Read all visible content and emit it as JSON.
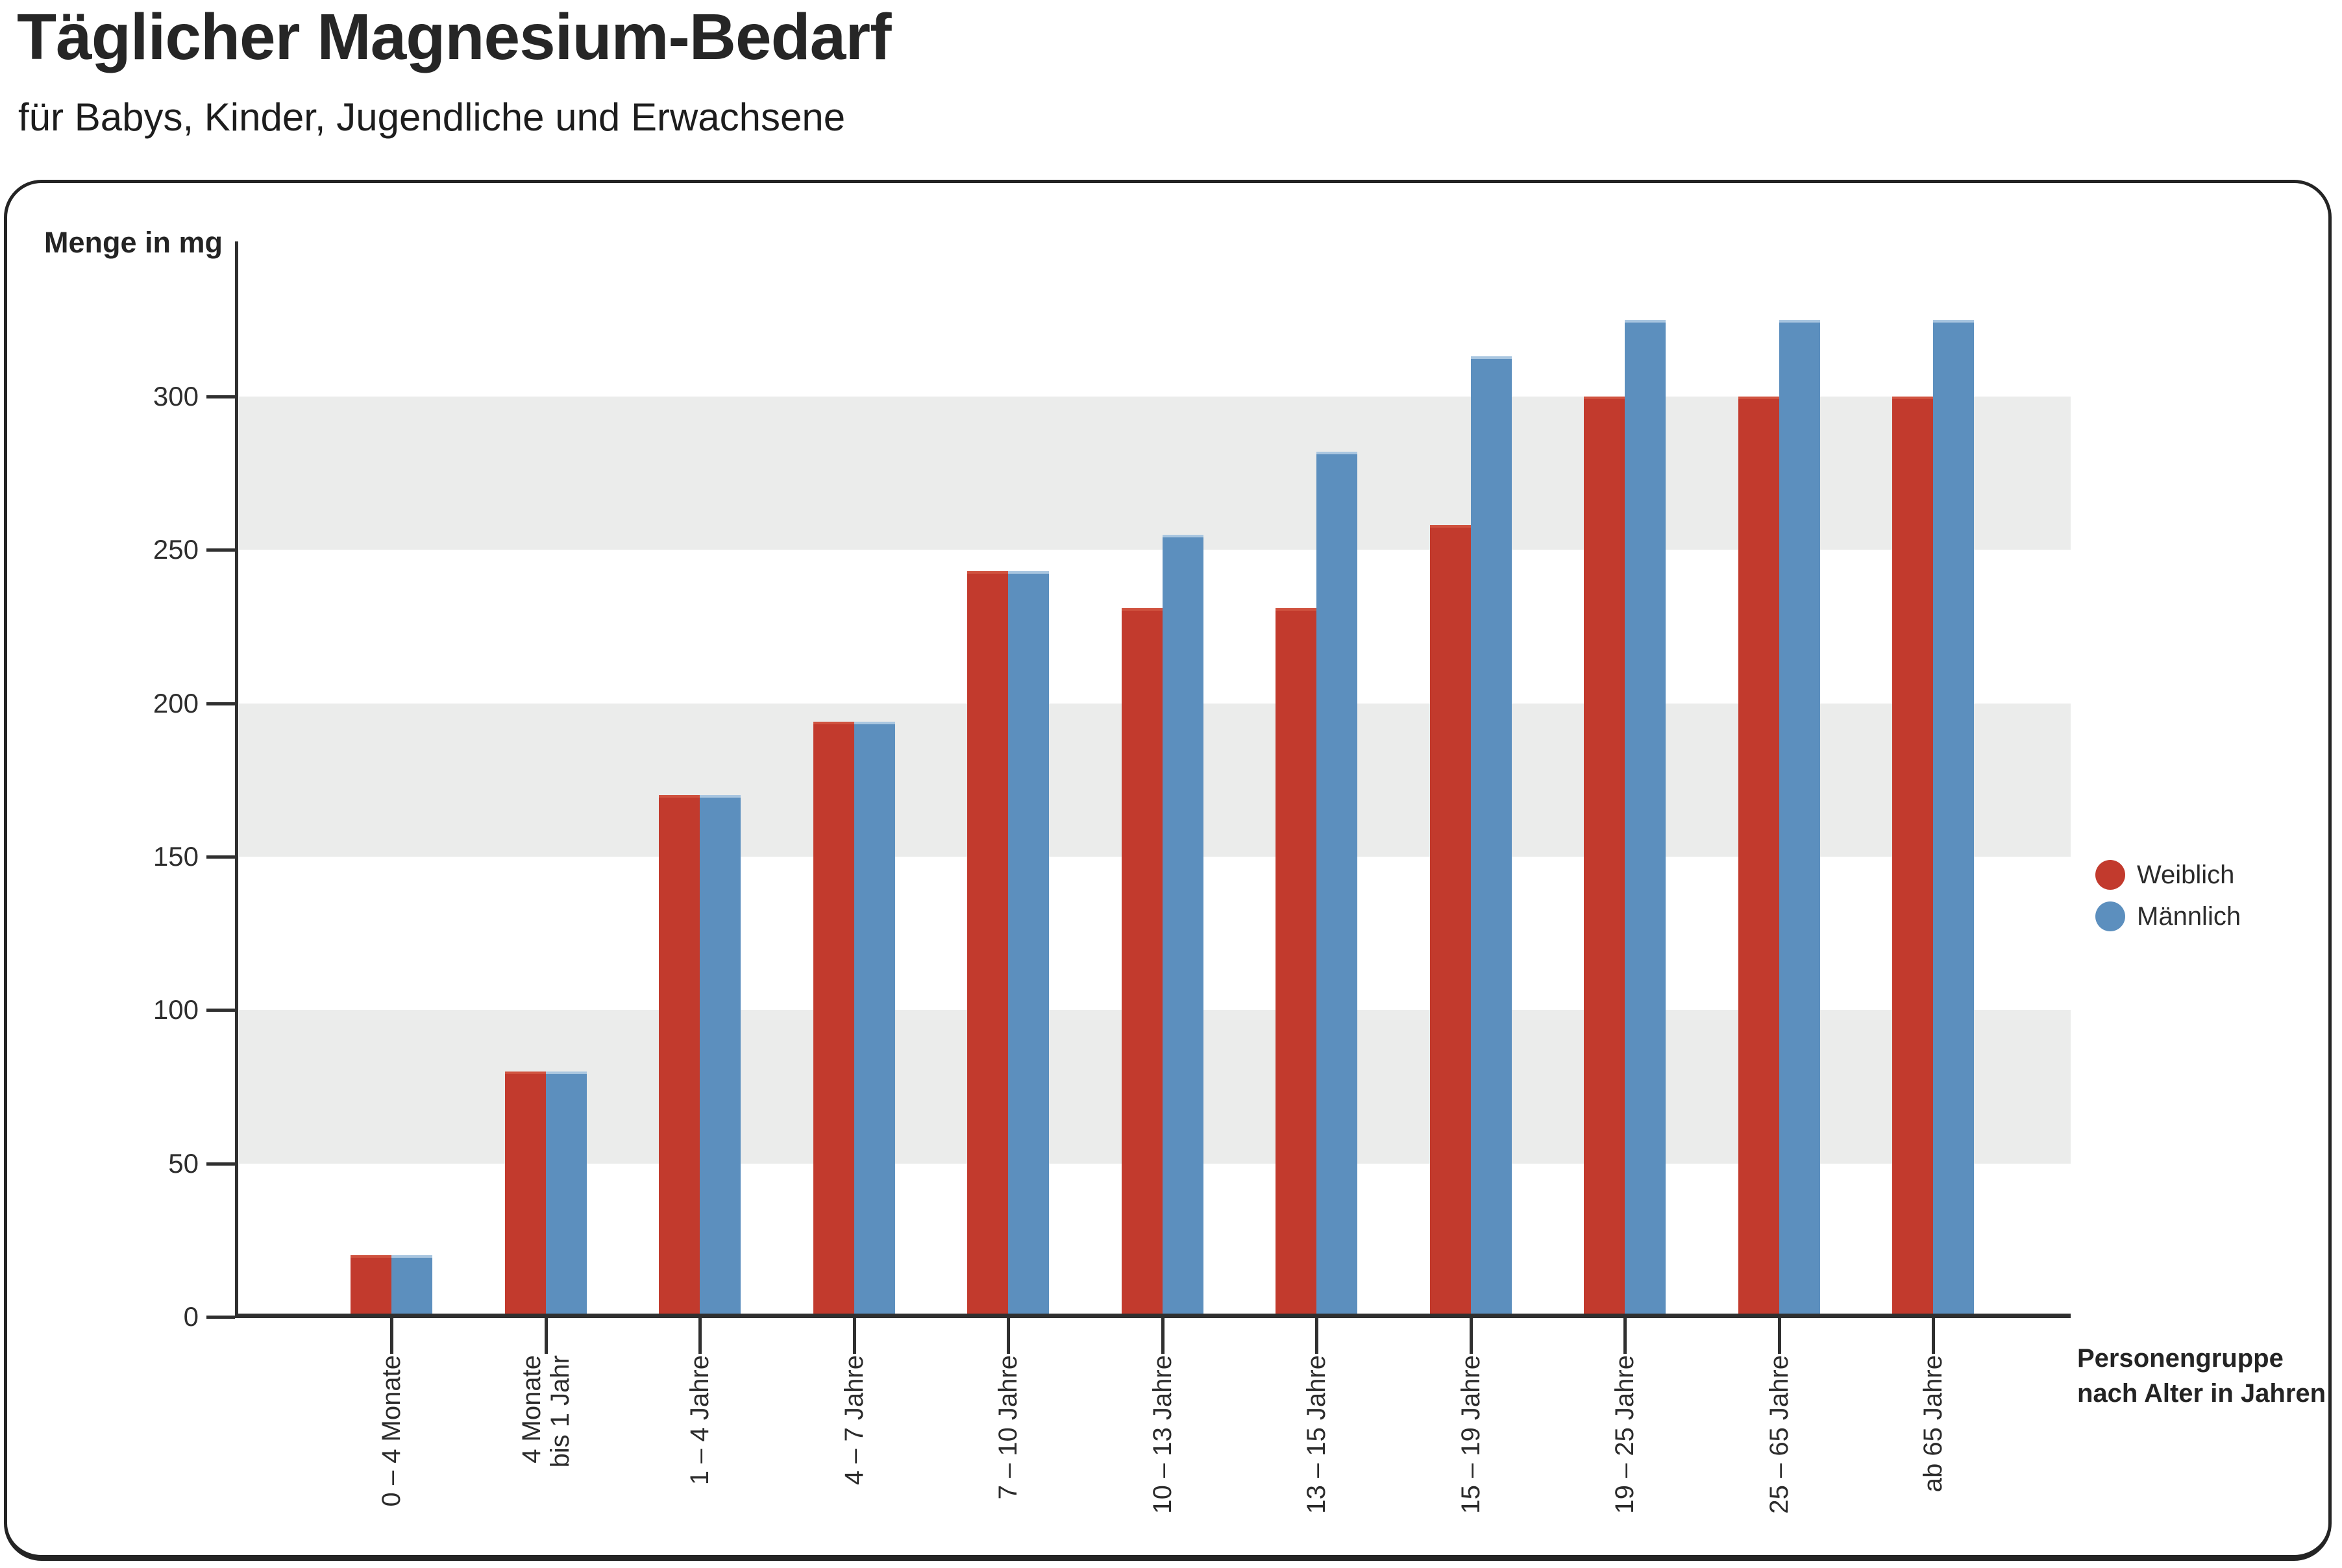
{
  "header": {
    "title": "Täglicher Magnesium-Bedarf",
    "subtitle": "für Babys, Kinder, Jugendliche und Erwachsene"
  },
  "chart": {
    "y_axis_title": "Menge in mg",
    "x_axis_title_lines": [
      "Personengruppe",
      "nach Alter in Jahren"
    ]
  },
  "legend": [
    {
      "label": "Weiblich",
      "color": "#c23a2d"
    },
    {
      "label": "Männlich",
      "color": "#5c8fbe"
    }
  ],
  "chart_data": {
    "type": "bar",
    "title": "Täglicher Magnesium-Bedarf",
    "subtitle": "für Babys, Kinder, Jugendliche und Erwachsene",
    "ylabel": "Menge in mg",
    "xlabel": "Personengruppe nach Alter in Jahren",
    "unit": "mg",
    "ylim": [
      0,
      340
    ],
    "yticks": [
      0,
      50,
      100,
      150,
      200,
      250,
      300
    ],
    "grid_bands": [
      [
        50,
        100
      ],
      [
        150,
        200
      ],
      [
        250,
        300
      ]
    ],
    "grid": "banded",
    "legend_position": "right",
    "categories": [
      "0 – 4 Monate",
      "4 Monate bis 1 Jahr",
      "1 – 4 Jahre",
      "4 – 7 Jahre",
      "7 – 10 Jahre",
      "10 – 13 Jahre",
      "13 – 15 Jahre",
      "15 – 19 Jahre",
      "19 – 25 Jahre",
      "25 – 65 Jahre",
      "ab 65 Jahre"
    ],
    "categories_display": [
      [
        "0 – 4 Monate"
      ],
      [
        "4 Monate",
        "bis 1 Jahr"
      ],
      [
        "1 – 4 Jahre"
      ],
      [
        "4 – 7 Jahre"
      ],
      [
        "7 – 10 Jahre"
      ],
      [
        "10 – 13 Jahre"
      ],
      [
        "13 – 15 Jahre"
      ],
      [
        "15 – 19 Jahre"
      ],
      [
        "19 – 25 Jahre"
      ],
      [
        "25 – 65 Jahre"
      ],
      [
        "ab 65 Jahre"
      ]
    ],
    "series": [
      {
        "name": "Weiblich",
        "color": "#c23a2d",
        "edge_color": "#d0523f",
        "values": [
          20,
          80,
          170,
          194,
          243,
          231,
          231,
          258,
          300,
          300,
          300
        ]
      },
      {
        "name": "Männlich",
        "color": "#5c8fbe",
        "edge_color": "#a9c6e0",
        "values": [
          20,
          80,
          170,
          194,
          243,
          255,
          282,
          313,
          325,
          325,
          325
        ]
      }
    ]
  },
  "colors": {
    "band": "#ebeceb",
    "axis": "#2f2f2f",
    "panel_border": "#242424",
    "background": "#ffffff"
  }
}
